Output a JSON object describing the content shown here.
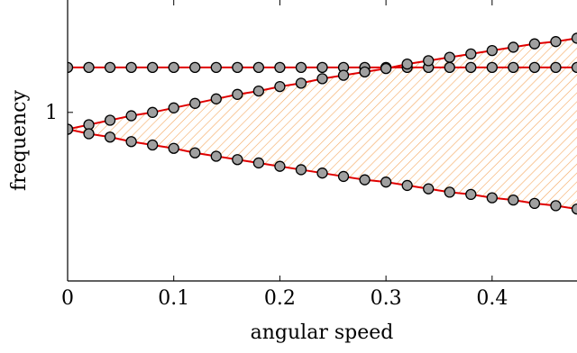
{
  "chart_data": {
    "type": "line",
    "xlabel": "angular speed",
    "ylabel": "frequency",
    "xlim": [
      0,
      0.48
    ],
    "ylim": [
      0.85,
      1.1
    ],
    "x_ticks": [
      "0",
      "0.1",
      "0.2",
      "0.3",
      "0.4"
    ],
    "x_tick_values": [
      0,
      0.1,
      0.2,
      0.3,
      0.4
    ],
    "y_ticks": [
      "1"
    ],
    "y_tick_values": [
      1
    ],
    "grid": false,
    "colors": {
      "line": "#e00000",
      "marker_fill": "#a0a0a0",
      "marker_stroke": "#000000",
      "hatch": "#f5a860"
    },
    "hatched_region": "between upper and lower branches",
    "series": [
      {
        "x": [
          0,
          0.02,
          0.04,
          0.06,
          0.08,
          0.1,
          0.12,
          0.14,
          0.16,
          0.18,
          0.2,
          0.22,
          0.24,
          0.26,
          0.28,
          0.3,
          0.32,
          0.34,
          0.36,
          0.38,
          0.4,
          0.42,
          0.44,
          0.46,
          0.48
        ],
        "y": [
          1.04,
          1.04,
          1.04,
          1.04,
          1.04,
          1.04,
          1.04,
          1.04,
          1.04,
          1.04,
          1.04,
          1.04,
          1.04,
          1.04,
          1.04,
          1.04,
          1.04,
          1.04,
          1.04,
          1.04,
          1.04,
          1.04,
          1.04,
          1.04,
          1.04
        ]
      },
      {
        "x": [
          0,
          0.02,
          0.04,
          0.06,
          0.08,
          0.1,
          0.12,
          0.14,
          0.16,
          0.18,
          0.2,
          0.22,
          0.24,
          0.26,
          0.28,
          0.3,
          0.32,
          0.34,
          0.36,
          0.38,
          0.4,
          0.42,
          0.44,
          0.46,
          0.48
        ],
        "y": [
          0.985,
          0.989,
          0.993,
          0.997,
          1.0,
          1.004,
          1.008,
          1.012,
          1.016,
          1.019,
          1.023,
          1.026,
          1.03,
          1.033,
          1.036,
          1.039,
          1.043,
          1.046,
          1.049,
          1.052,
          1.055,
          1.058,
          1.061,
          1.063,
          1.066
        ]
      },
      {
        "x": [
          0,
          0.02,
          0.04,
          0.06,
          0.08,
          0.1,
          0.12,
          0.14,
          0.16,
          0.18,
          0.2,
          0.22,
          0.24,
          0.26,
          0.28,
          0.3,
          0.32,
          0.34,
          0.36,
          0.38,
          0.4,
          0.42,
          0.44,
          0.46,
          0.48
        ],
        "y": [
          0.985,
          0.981,
          0.978,
          0.974,
          0.971,
          0.968,
          0.964,
          0.961,
          0.958,
          0.955,
          0.952,
          0.949,
          0.946,
          0.943,
          0.94,
          0.938,
          0.935,
          0.932,
          0.929,
          0.927,
          0.924,
          0.922,
          0.919,
          0.917,
          0.914
        ]
      }
    ]
  }
}
